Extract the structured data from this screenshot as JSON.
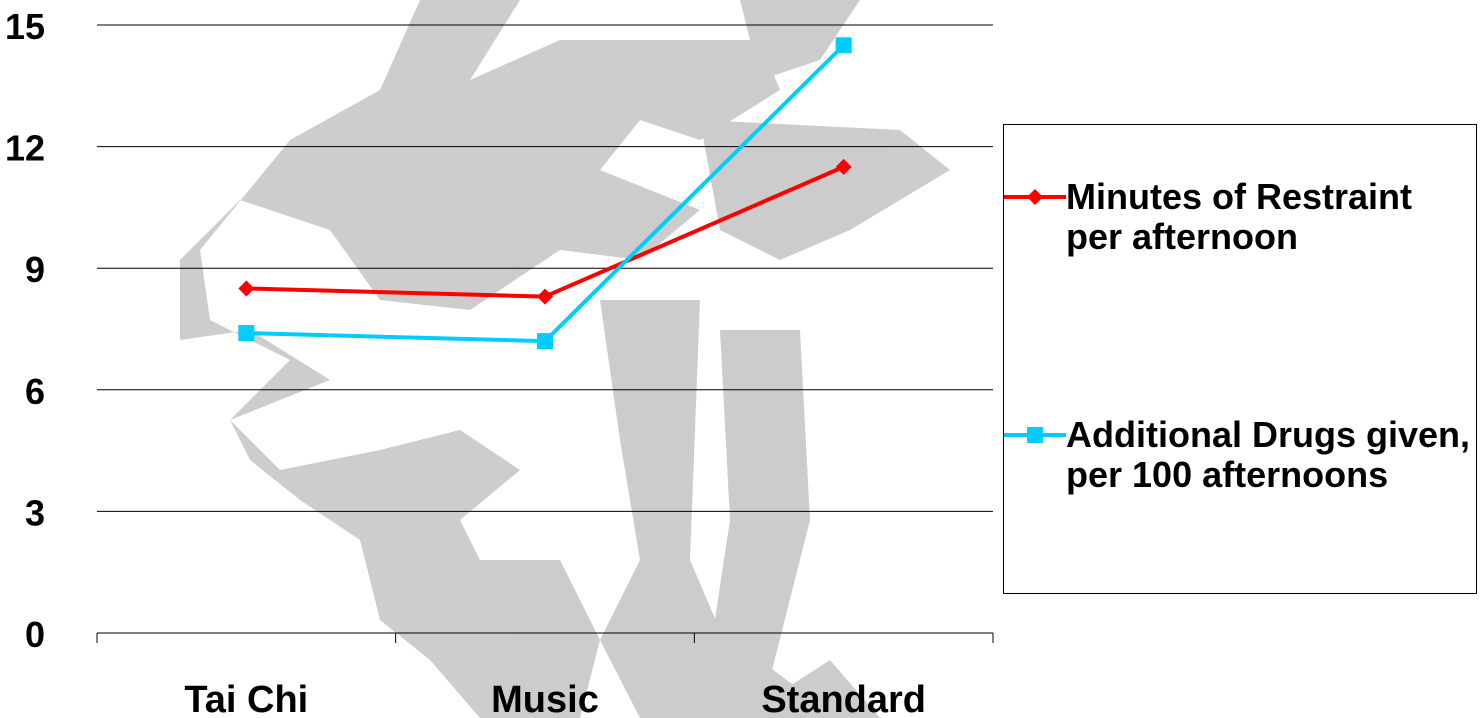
{
  "chart_data": {
    "type": "line",
    "categories": [
      "Tai Chi",
      "Music",
      "Standard"
    ],
    "series": [
      {
        "name": "Minutes of Restraint per afternoon",
        "values": [
          8.5,
          8.3,
          11.5
        ],
        "color": "#ff0000",
        "marker": "diamond"
      },
      {
        "name": "Additional Drugs given, per 100 afternoons",
        "values": [
          7.4,
          7.2,
          14.5
        ],
        "color": "#00ccff",
        "marker": "square"
      }
    ],
    "ylim": [
      0,
      15
    ],
    "yticks": [
      0,
      3,
      6,
      9,
      12,
      15
    ],
    "title": "",
    "xlabel": "",
    "ylabel": "",
    "grid": "horizontal",
    "legend_position": "right"
  }
}
